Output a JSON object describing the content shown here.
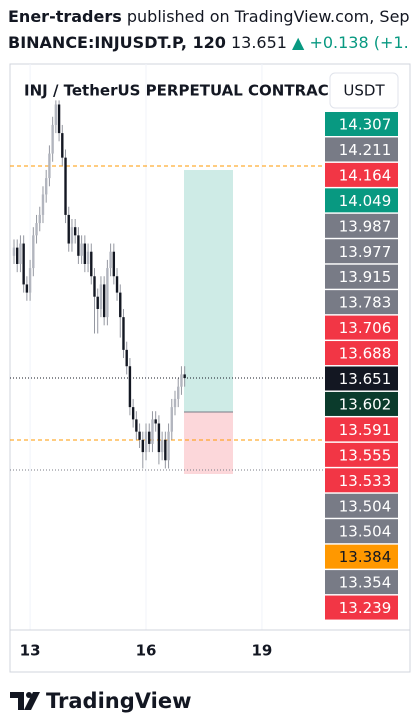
{
  "header": {
    "author": "Ener-traders",
    "published": "published on TradingView.com, Sep",
    "symbol": "BINANCE:INJUSDT.P, 120",
    "last": "13.651",
    "arrow": "▲",
    "change": "+0.138 (+1."
  },
  "chart_data": {
    "type": "candlestick",
    "legend_title": "INJ / TetherUS PERPETUAL CONTRACT",
    "currency_button": "USDT",
    "up_color": "#b2b5be",
    "down_color": "#131722",
    "ohlc": [
      [
        13.95,
        13.99,
        13.93,
        13.97
      ],
      [
        13.97,
        13.99,
        13.91,
        13.93
      ],
      [
        13.93,
        14.0,
        13.91,
        13.98
      ],
      [
        13.98,
        14.0,
        13.86,
        13.88
      ],
      [
        13.88,
        13.9,
        13.84,
        13.86
      ],
      [
        13.86,
        13.94,
        13.84,
        13.92
      ],
      [
        13.92,
        14.02,
        13.9,
        14.0
      ],
      [
        14.0,
        14.05,
        13.98,
        14.03
      ],
      [
        14.03,
        14.07,
        14.01,
        14.05
      ],
      [
        14.05,
        14.12,
        14.03,
        14.1
      ],
      [
        14.1,
        14.16,
        14.08,
        14.14
      ],
      [
        14.14,
        14.22,
        14.12,
        14.2
      ],
      [
        14.2,
        14.29,
        14.18,
        14.27
      ],
      [
        14.27,
        14.33,
        14.25,
        14.32
      ],
      [
        14.32,
        14.33,
        14.23,
        14.25
      ],
      [
        14.25,
        14.27,
        14.17,
        14.19
      ],
      [
        14.19,
        14.21,
        14.03,
        14.05
      ],
      [
        14.05,
        14.07,
        13.96,
        13.98
      ],
      [
        13.98,
        14.04,
        13.96,
        14.02
      ],
      [
        14.02,
        14.04,
        13.98,
        14.0
      ],
      [
        14.0,
        14.02,
        13.93,
        13.95
      ],
      [
        13.95,
        14.0,
        13.93,
        13.98
      ],
      [
        13.98,
        14.0,
        13.91,
        13.93
      ],
      [
        13.93,
        13.98,
        13.91,
        13.96
      ],
      [
        13.96,
        13.98,
        13.88,
        13.9
      ],
      [
        13.9,
        13.92,
        13.76,
        13.85
      ],
      [
        13.85,
        13.87,
        13.76,
        13.82
      ],
      [
        13.82,
        13.9,
        13.8,
        13.88
      ],
      [
        13.88,
        13.9,
        13.78,
        13.8
      ],
      [
        13.8,
        13.94,
        13.78,
        13.92
      ],
      [
        13.92,
        13.98,
        13.9,
        13.96
      ],
      [
        13.96,
        13.98,
        13.88,
        13.9
      ],
      [
        13.9,
        13.92,
        13.84,
        13.86
      ],
      [
        13.86,
        13.88,
        13.75,
        13.8
      ],
      [
        13.8,
        13.82,
        13.7,
        13.72
      ],
      [
        13.72,
        13.74,
        13.66,
        13.68
      ],
      [
        13.68,
        13.7,
        13.56,
        13.58
      ],
      [
        13.58,
        13.6,
        13.53,
        13.55
      ],
      [
        13.55,
        13.57,
        13.5,
        13.52
      ],
      [
        13.52,
        13.54,
        13.48,
        13.5
      ],
      [
        13.5,
        13.52,
        13.43,
        13.47
      ],
      [
        13.47,
        13.54,
        13.45,
        13.52
      ],
      [
        13.52,
        13.54,
        13.47,
        13.49
      ],
      [
        13.49,
        13.57,
        13.47,
        13.55
      ],
      [
        13.55,
        13.57,
        13.52,
        13.54
      ],
      [
        13.54,
        13.56,
        13.44,
        13.47
      ],
      [
        13.47,
        13.52,
        13.45,
        13.5
      ],
      [
        13.5,
        13.52,
        13.43,
        13.45
      ],
      [
        13.45,
        13.54,
        13.43,
        13.52
      ],
      [
        13.52,
        13.6,
        13.5,
        13.58
      ],
      [
        13.58,
        13.62,
        13.56,
        13.6
      ],
      [
        13.6,
        13.65,
        13.58,
        13.63
      ],
      [
        13.63,
        13.68,
        13.61,
        13.66
      ],
      [
        13.66,
        13.68,
        13.63,
        13.651
      ]
    ],
    "xlim": [
      -1.24,
      96.58
    ],
    "ylim": [
      13.035,
      14.419
    ],
    "xticks": [
      {
        "value": 5,
        "label": "13"
      },
      {
        "value": 41,
        "label": "16"
      },
      {
        "value": 77,
        "label": "19"
      }
    ],
    "price_tags": [
      {
        "label": "14.307",
        "color": "#089981"
      },
      {
        "label": "14.211",
        "color": "#787b86"
      },
      {
        "label": "14.164",
        "color": "#f23645"
      },
      {
        "label": "14.049",
        "color": "#089981"
      },
      {
        "label": "13.987",
        "color": "#787b86"
      },
      {
        "label": "13.977",
        "color": "#787b86"
      },
      {
        "label": "13.915",
        "color": "#787b86"
      },
      {
        "label": "13.783",
        "color": "#787b86"
      },
      {
        "label": "13.706",
        "color": "#f23645"
      },
      {
        "label": "13.688",
        "color": "#f23645"
      },
      {
        "label": "13.651",
        "color": "#131722"
      },
      {
        "label": "13.602",
        "color": "#0b3b2c"
      },
      {
        "label": "13.591",
        "color": "#f23645"
      },
      {
        "label": "13.555",
        "color": "#f23645"
      },
      {
        "label": "13.533",
        "color": "#f23645"
      },
      {
        "label": "13.504",
        "color": "#787b86"
      },
      {
        "label": "13.504",
        "color": "#787b86"
      },
      {
        "label": "13.384",
        "color": "#ff9800"
      },
      {
        "label": "13.354",
        "color": "#787b86"
      },
      {
        "label": "13.239",
        "color": "#f23645"
      }
    ]
  },
  "footer": {
    "brand": "TradingView"
  }
}
